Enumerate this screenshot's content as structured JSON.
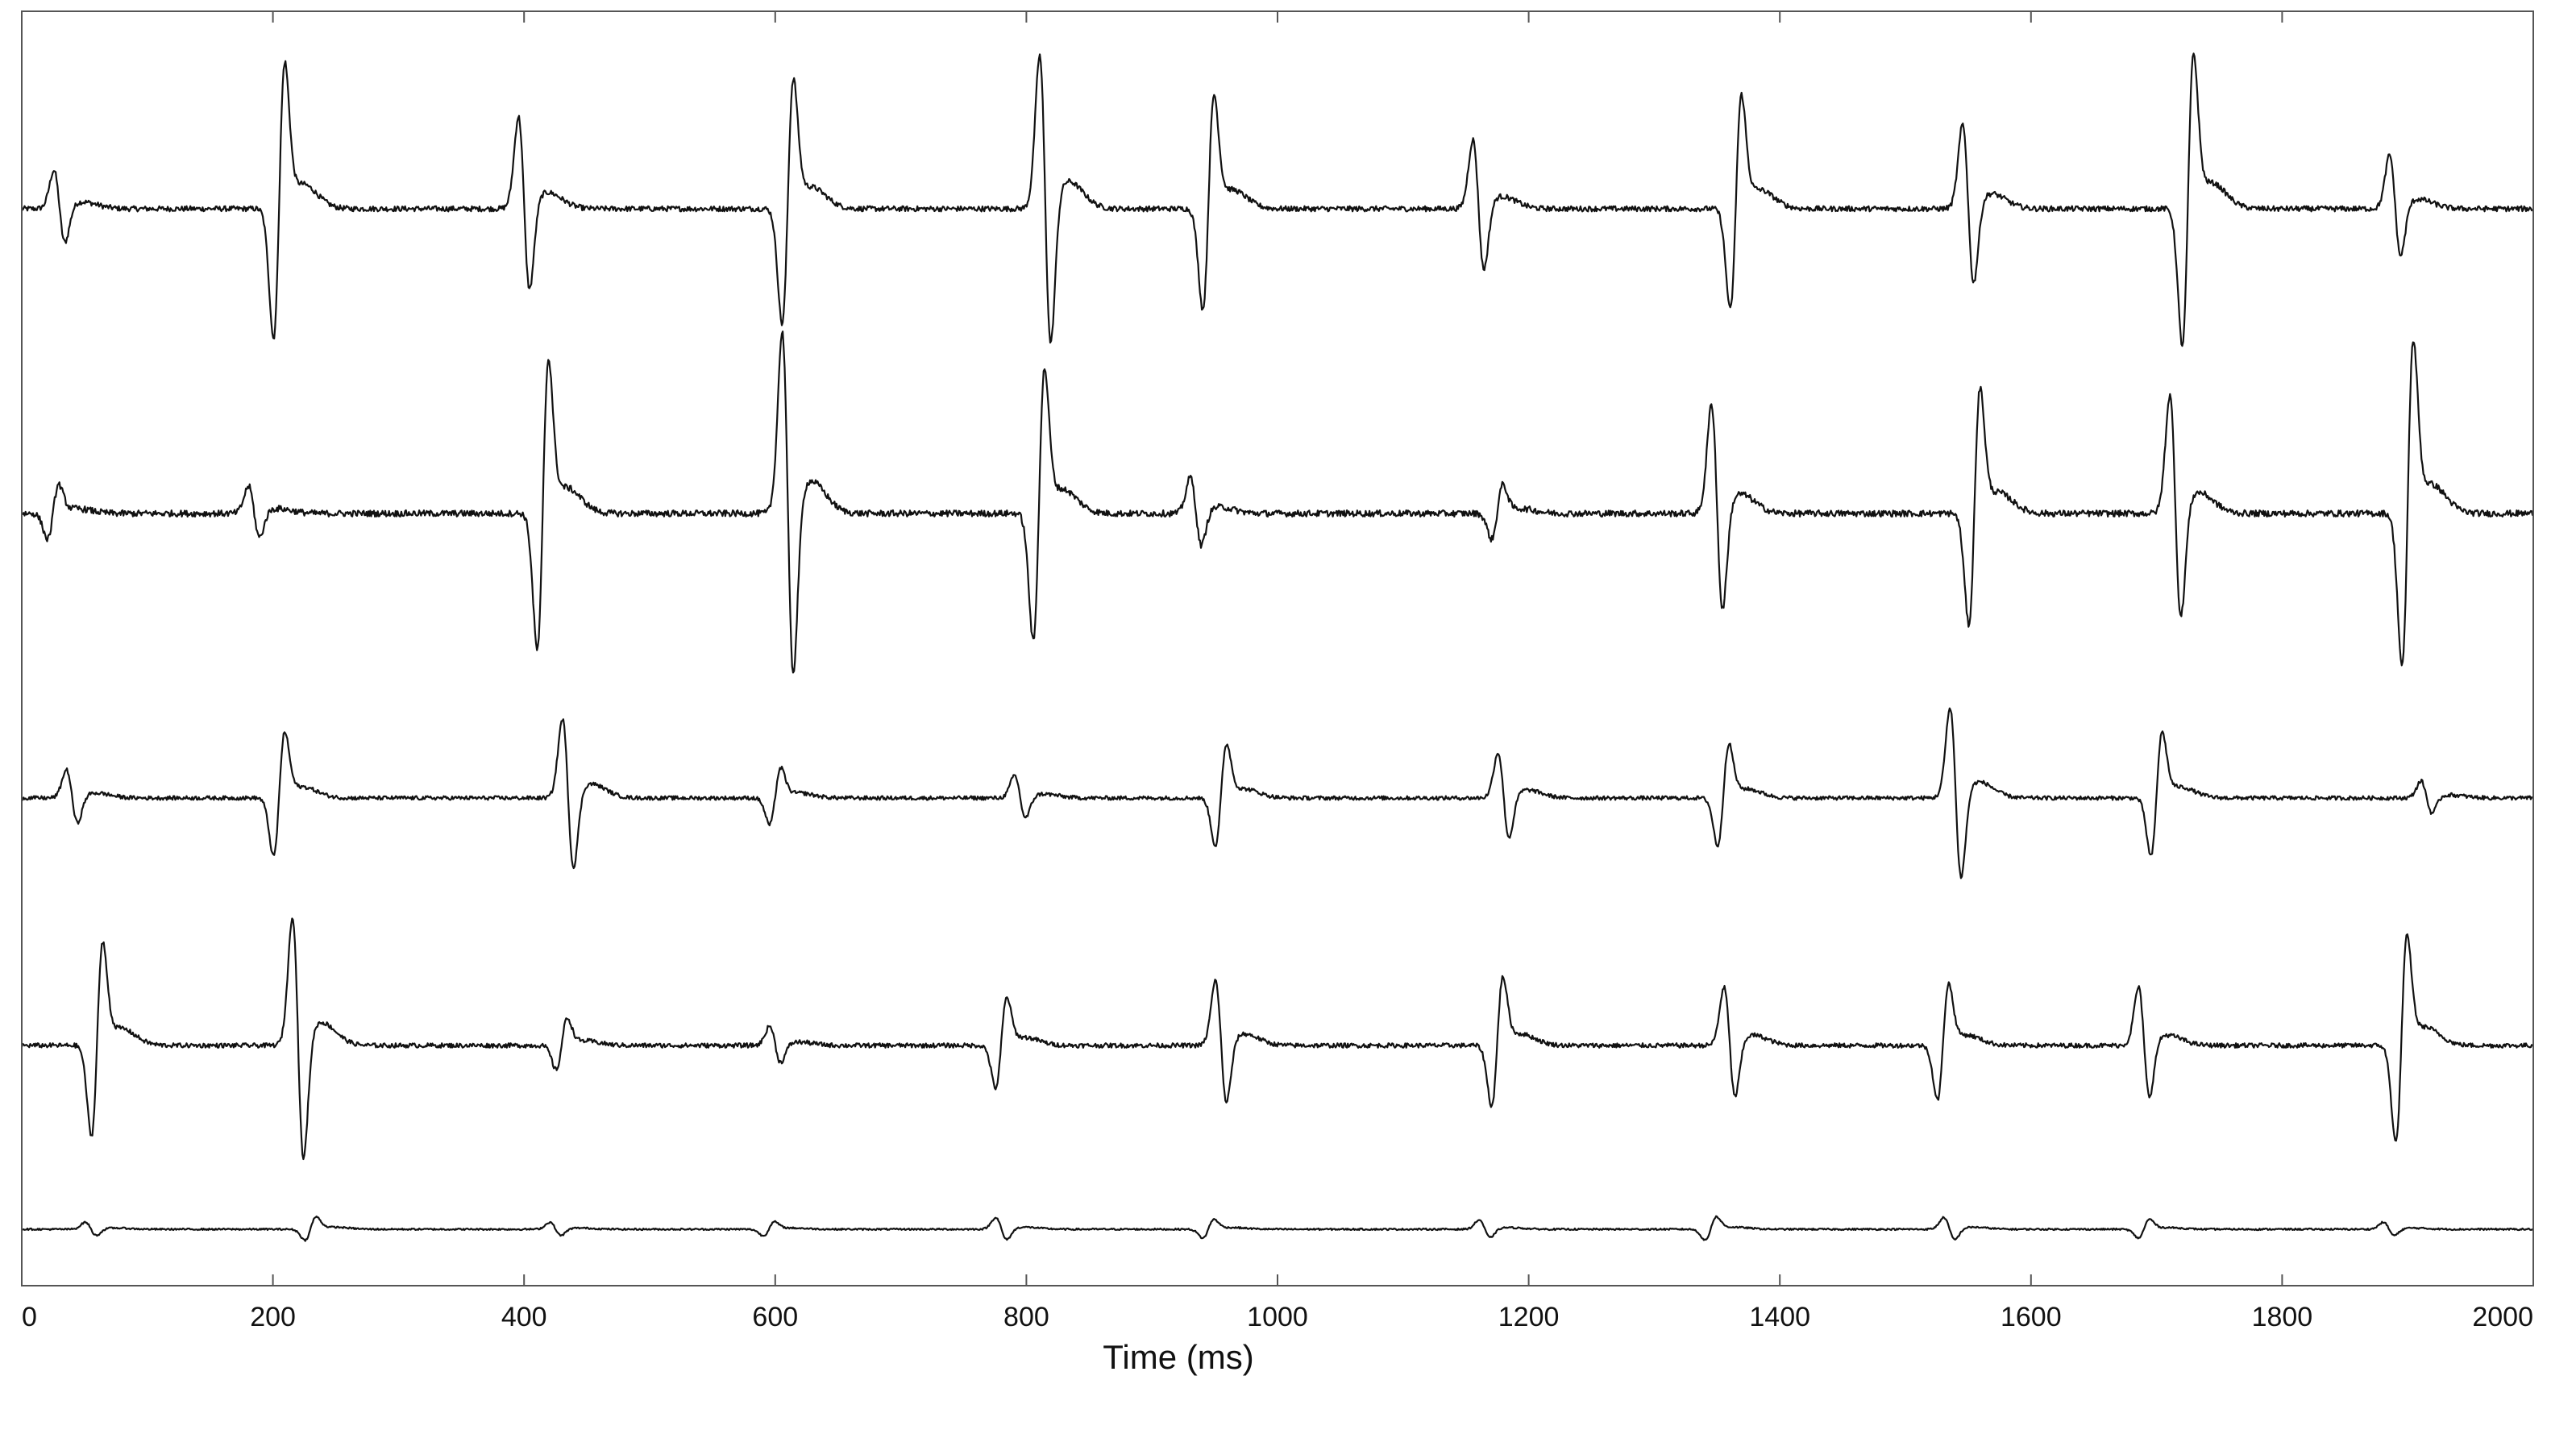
{
  "chart_data": {
    "type": "line",
    "xlabel": "Time (ms)",
    "ylabel": "",
    "xlim": [
      0,
      2000
    ],
    "x_ticks": [
      0,
      200,
      400,
      600,
      800,
      1000,
      1200,
      1400,
      1600,
      1800,
      2000
    ],
    "grid": false,
    "legend": "none",
    "series": [
      {
        "baseline": 0,
        "complexes": [
          {
            "t": 30,
            "a": 0.25
          },
          {
            "t": 205,
            "a": 0.9
          },
          {
            "t": 400,
            "a": 0.6
          },
          {
            "t": 610,
            "a": 0.8
          },
          {
            "t": 815,
            "a": 1.0
          },
          {
            "t": 945,
            "a": 0.7
          },
          {
            "t": 1160,
            "a": 0.45
          },
          {
            "t": 1365,
            "a": 0.7
          },
          {
            "t": 1550,
            "a": 0.55
          },
          {
            "t": 1725,
            "a": 0.95
          },
          {
            "t": 1890,
            "a": 0.35
          }
        ]
      },
      {
        "baseline": 0,
        "complexes": [
          {
            "t": 25,
            "a": 0.15
          },
          {
            "t": 185,
            "a": 0.15
          },
          {
            "t": 415,
            "a": 0.8
          },
          {
            "t": 610,
            "a": 1.0
          },
          {
            "t": 810,
            "a": 0.75
          },
          {
            "t": 935,
            "a": 0.2
          },
          {
            "t": 1175,
            "a": 0.15
          },
          {
            "t": 1350,
            "a": 0.6
          },
          {
            "t": 1555,
            "a": 0.65
          },
          {
            "t": 1715,
            "a": 0.65
          },
          {
            "t": 1900,
            "a": 0.9
          }
        ]
      },
      {
        "baseline": 0,
        "complexes": [
          {
            "t": 40,
            "a": 0.25
          },
          {
            "t": 205,
            "a": 0.55
          },
          {
            "t": 435,
            "a": 0.7
          },
          {
            "t": 600,
            "a": 0.25
          },
          {
            "t": 795,
            "a": 0.2
          },
          {
            "t": 955,
            "a": 0.45
          },
          {
            "t": 1180,
            "a": 0.4
          },
          {
            "t": 1355,
            "a": 0.45
          },
          {
            "t": 1540,
            "a": 0.8
          },
          {
            "t": 1700,
            "a": 0.55
          },
          {
            "t": 1915,
            "a": 0.15
          }
        ]
      },
      {
        "baseline": 0,
        "complexes": [
          {
            "t": 60,
            "a": 0.75
          },
          {
            "t": 220,
            "a": 1.0
          },
          {
            "t": 430,
            "a": 0.2
          },
          {
            "t": 600,
            "a": 0.15
          },
          {
            "t": 780,
            "a": 0.35
          },
          {
            "t": 955,
            "a": 0.5
          },
          {
            "t": 1175,
            "a": 0.5
          },
          {
            "t": 1360,
            "a": 0.45
          },
          {
            "t": 1530,
            "a": 0.45
          },
          {
            "t": 1690,
            "a": 0.45
          },
          {
            "t": 1895,
            "a": 0.8
          }
        ]
      },
      {
        "baseline": 0,
        "complexes": [
          {
            "t": 55,
            "a": 0.15
          },
          {
            "t": 230,
            "a": 0.25
          },
          {
            "t": 425,
            "a": 0.15
          },
          {
            "t": 595,
            "a": 0.15
          },
          {
            "t": 780,
            "a": 0.25
          },
          {
            "t": 945,
            "a": 0.2
          },
          {
            "t": 1165,
            "a": 0.2
          },
          {
            "t": 1345,
            "a": 0.25
          },
          {
            "t": 1535,
            "a": 0.25
          },
          {
            "t": 1690,
            "a": 0.2
          },
          {
            "t": 1885,
            "a": 0.15
          }
        ]
      }
    ]
  }
}
